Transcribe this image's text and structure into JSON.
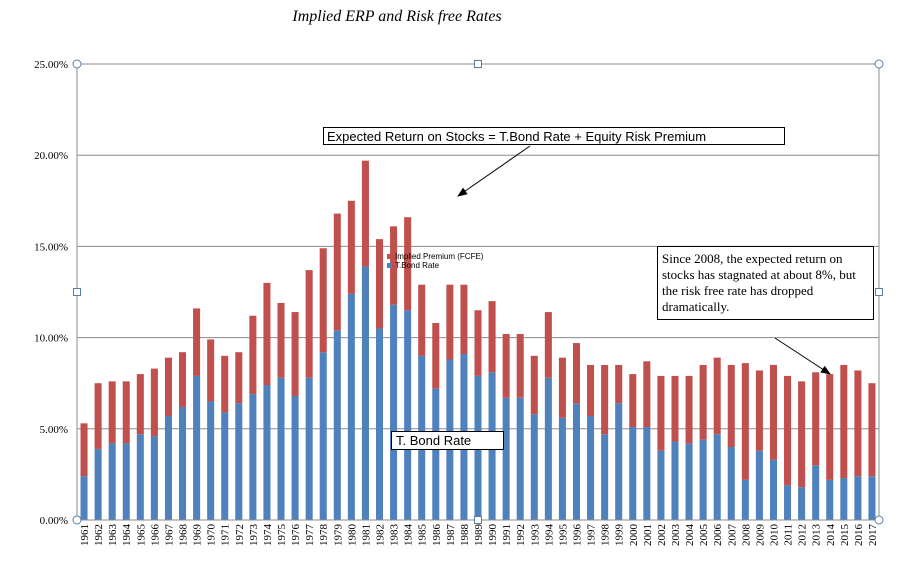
{
  "chart_data": {
    "type": "bar",
    "stacked": true,
    "title": "Implied ERP and Risk free  Rates",
    "categories": [
      "1961",
      "1962",
      "1963",
      "1964",
      "1965",
      "1966",
      "1967",
      "1968",
      "1969",
      "1970",
      "1971",
      "1972",
      "1973",
      "1974",
      "1975",
      "1976",
      "1977",
      "1978",
      "1979",
      "1980",
      "1981",
      "1982",
      "1983",
      "1984",
      "1985",
      "1986",
      "1987",
      "1988",
      "1989",
      "1990",
      "1991",
      "1992",
      "1993",
      "1994",
      "1995",
      "1996",
      "1997",
      "1998",
      "1999",
      "2000",
      "2001",
      "2002",
      "2003",
      "2004",
      "2005",
      "2006",
      "2007",
      "2008",
      "2009",
      "2010",
      "2011",
      "2012",
      "2013",
      "2014",
      "2015",
      "2016",
      "2017"
    ],
    "series": [
      {
        "name": "T.Bond Rate",
        "color": "#4f81bd",
        "values": [
          2.4,
          3.9,
          4.2,
          4.2,
          4.7,
          4.6,
          5.7,
          6.2,
          7.9,
          6.5,
          5.9,
          6.4,
          6.9,
          7.4,
          7.8,
          6.8,
          7.8,
          9.2,
          10.4,
          12.4,
          13.9,
          10.5,
          11.8,
          11.5,
          9.0,
          7.2,
          8.8,
          9.1,
          7.9,
          8.1,
          6.7,
          6.7,
          5.8,
          7.8,
          5.6,
          6.4,
          5.7,
          4.7,
          6.4,
          5.1,
          5.1,
          3.8,
          4.3,
          4.2,
          4.4,
          4.7,
          4.0,
          2.2,
          3.8,
          3.3,
          1.9,
          1.8,
          3.0,
          2.2,
          2.3,
          2.4,
          2.4
        ]
      },
      {
        "name": "Implied Premium (FCFE)",
        "color": "#c0504d",
        "values": [
          2.9,
          3.6,
          3.4,
          3.4,
          3.3,
          3.7,
          3.2,
          3.0,
          3.7,
          3.4,
          3.1,
          2.8,
          4.3,
          5.6,
          4.1,
          4.6,
          5.9,
          5.7,
          6.4,
          5.1,
          5.8,
          4.9,
          4.3,
          5.1,
          3.9,
          3.6,
          4.1,
          3.8,
          3.6,
          3.9,
          3.5,
          3.5,
          3.2,
          3.6,
          3.3,
          3.3,
          2.8,
          3.8,
          2.1,
          2.9,
          3.6,
          4.1,
          3.6,
          3.7,
          4.1,
          4.2,
          4.5,
          6.4,
          4.4,
          5.2,
          6.0,
          5.8,
          5.1,
          5.8,
          6.2,
          5.8,
          5.1
        ]
      }
    ],
    "ylim": [
      0,
      25
    ],
    "yticks": [
      "0.00%",
      "5.00%",
      "10.00%",
      "15.00%",
      "20.00%",
      "25.00%"
    ],
    "grid": true,
    "legend_placement": "center",
    "annotations": [
      "Expected Return on Stocks = T.Bond Rate + Equity Risk  Premium",
      "T. Bond Rate",
      "Since  2008, the expected return  on stocks has stagnated  at about 8%, but the risk free rate has dropped dramatically."
    ]
  }
}
